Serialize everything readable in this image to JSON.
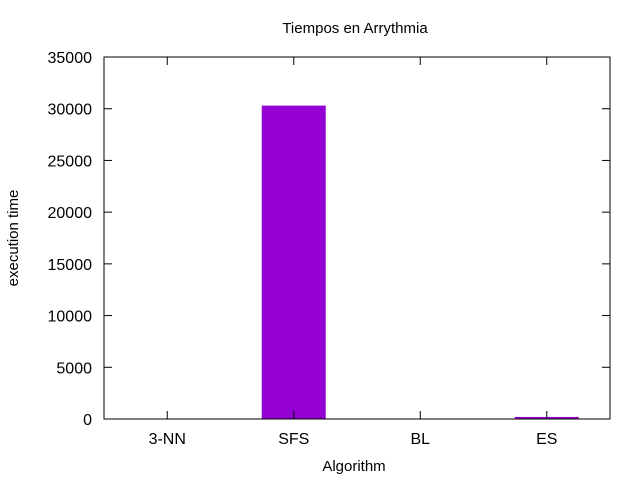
{
  "chart_data": {
    "type": "bar",
    "title": "Tiempos en Arrythmia",
    "xlabel": "Algorithm",
    "ylabel": "execution time",
    "categories": [
      "3-NN",
      "SFS",
      "BL",
      "ES"
    ],
    "values": [
      0,
      30300,
      0,
      200
    ],
    "ylim": [
      0,
      35000
    ],
    "yticks": [
      0,
      5000,
      10000,
      15000,
      20000,
      25000,
      30000,
      35000
    ],
    "grid": false,
    "legend": "none",
    "bar_color": "#9400d3"
  }
}
